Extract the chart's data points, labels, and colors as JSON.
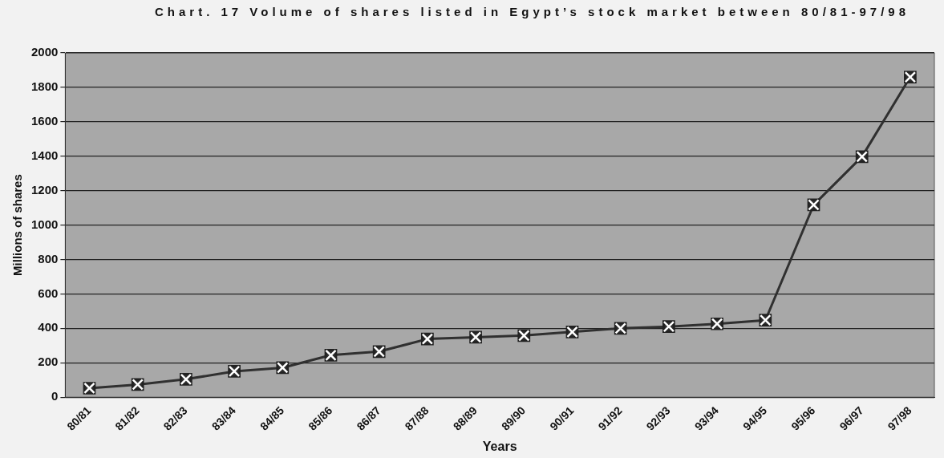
{
  "chart_data": {
    "type": "line",
    "title": "Chart. 17 Volume of shares listed  in Egypt’s stock market between 80/81-97/98",
    "xlabel": "Years",
    "ylabel": "Millions of shares",
    "categories": [
      "80/81",
      "81/82",
      "82/83",
      "83/84",
      "84/85",
      "85/86",
      "86/87",
      "87/88",
      "88/89",
      "89/90",
      "90/91",
      "91/92",
      "92/93",
      "93/94",
      "94/95",
      "95/96",
      "96/97",
      "97/98"
    ],
    "series": [
      {
        "color": "#303030",
        "values": [
          52,
          73,
          104,
          150,
          171,
          244,
          265,
          338,
          348,
          358,
          379,
          400,
          410,
          426,
          447,
          1117,
          1397,
          1860
        ]
      }
    ],
    "ylim": [
      0,
      2000
    ],
    "yticks": [
      0,
      200,
      400,
      600,
      800,
      1000,
      1200,
      1400,
      1600,
      1800,
      2000
    ],
    "grid": "y",
    "legend": false,
    "marker": "square",
    "line_style": "solid"
  }
}
